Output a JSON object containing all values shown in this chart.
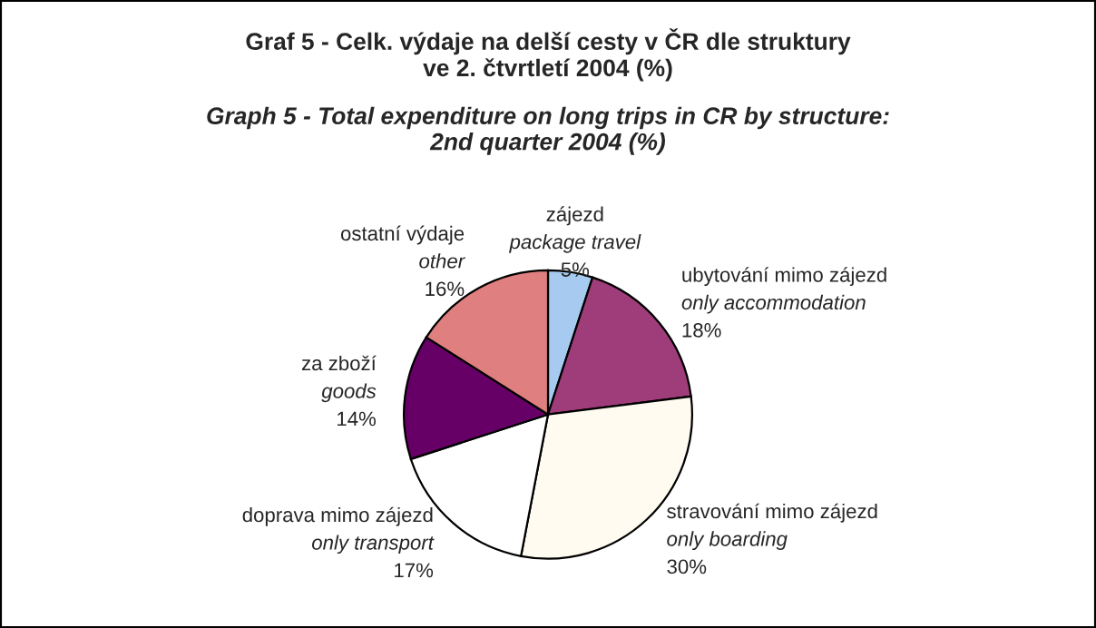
{
  "chart_data": {
    "type": "pie",
    "title": "Graf 5 - Celk. výdaje na delší cesty v ČR dle struktury\nve 2. čtvrtletí 2004 (%)",
    "subtitle": "Graph 5 - Total expenditure on long trips in CR by structure:\n2nd quarter 2004 (%)",
    "categories": [
      "zájezd\npackage travel",
      "ubytování mimo zájezd\nonly accommodation",
      "stravování mimo zájezd\nonly boarding",
      "doprava mimo zájezd\nonly transport",
      "za zboží\ngoods",
      "ostatní výdaje\nother"
    ],
    "values": [
      5,
      18,
      30,
      17,
      14,
      16
    ],
    "value_labels": [
      "5%",
      "18%",
      "30%",
      "17%",
      "14%",
      "16%"
    ],
    "colors": [
      "#a6caf0",
      "#9e3d7a",
      "#fffbf0",
      "#ffffff",
      "#660066",
      "#e07f7f"
    ],
    "legend": false
  }
}
